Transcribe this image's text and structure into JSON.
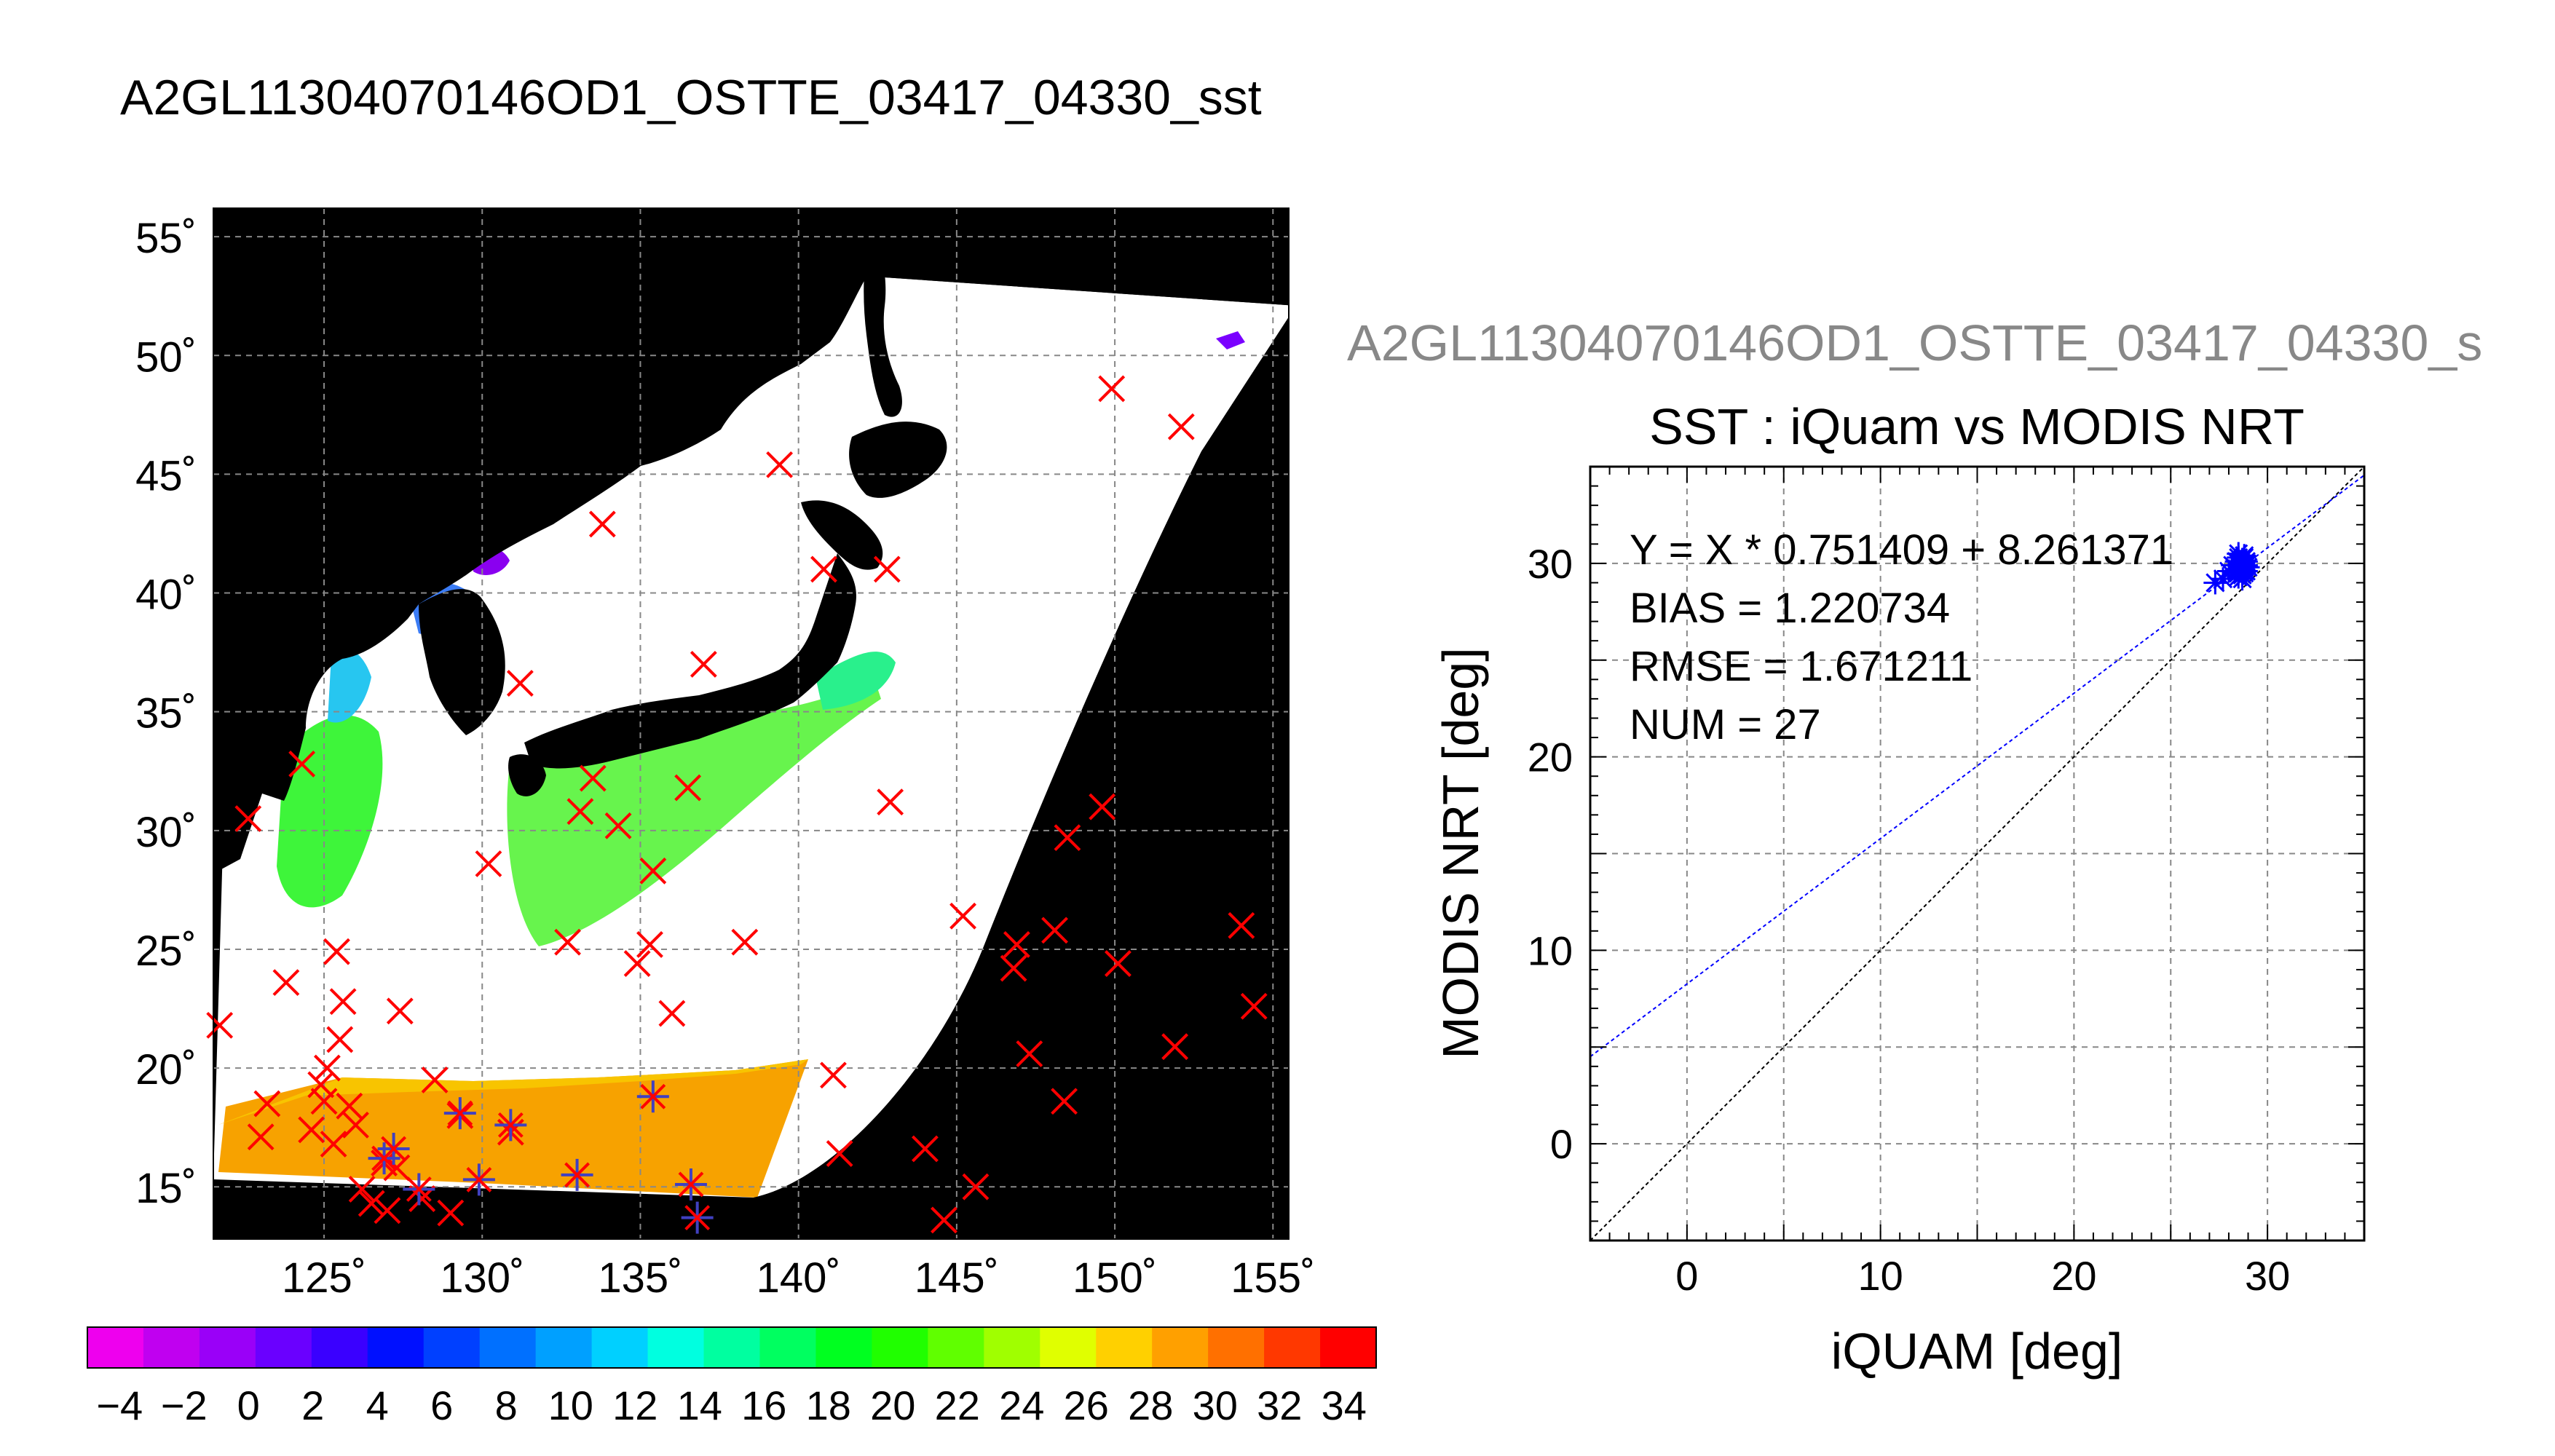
{
  "page": {
    "title": "A2GL11304070146OD1_OSTTE_03417_04330_sst"
  },
  "chart_data": [
    {
      "type": "map",
      "title": "A2GL11304070146OD1_OSTTE_03417_04330_sst",
      "description_variable": "sst",
      "lon_ticks": [
        125,
        130,
        135,
        140,
        145,
        150,
        155
      ],
      "lon_tick_labels": [
        "125˚",
        "130˚",
        "135˚",
        "140˚",
        "145˚",
        "150˚",
        "155˚"
      ],
      "lat_ticks": [
        15,
        20,
        25,
        30,
        35,
        40,
        45,
        50,
        55
      ],
      "lat_tick_labels": [
        "15˚",
        "20˚",
        "25˚",
        "30˚",
        "35˚",
        "40˚",
        "45˚",
        "50˚",
        "55˚"
      ],
      "xlim": [
        121.5,
        155.5
      ],
      "ylim": [
        12.8,
        56.2
      ],
      "grid": true,
      "colorbar": {
        "min": -5,
        "max": 35,
        "tick_values": [
          -4,
          -2,
          0,
          2,
          4,
          6,
          8,
          10,
          12,
          14,
          16,
          18,
          20,
          22,
          24,
          26,
          28,
          30,
          32,
          34
        ],
        "tick_labels": [
          "−4",
          "−2",
          "0",
          "2",
          "4",
          "6",
          "8",
          "10",
          "12",
          "14",
          "16",
          "18",
          "20",
          "22",
          "24",
          "26",
          "28",
          "30",
          "32",
          "34"
        ],
        "colors": [
          "#ee00ee",
          "#c000f0",
          "#9a00f8",
          "#6a00ff",
          "#3a00ff",
          "#0010ff",
          "#0040ff",
          "#0070ff",
          "#00a0ff",
          "#00d0ff",
          "#00ffe0",
          "#00ffa0",
          "#00ff60",
          "#00ff20",
          "#20ff00",
          "#60ff00",
          "#a0ff00",
          "#e0ff00",
          "#ffd000",
          "#ffa000",
          "#ff7000",
          "#ff3800",
          "#ff0000"
        ]
      },
      "unmatched_obs_marker": "x",
      "unmatched_obs_color": "#ff0000",
      "matched_obs_marker": "*",
      "matched_obs_color": "#4040c0",
      "obs_points": [
        {
          "lon": 121.7,
          "lat": 21.8
        },
        {
          "lon": 122.6,
          "lat": 30.5
        },
        {
          "lon": 123.0,
          "lat": 17.1
        },
        {
          "lon": 123.2,
          "lat": 18.5
        },
        {
          "lon": 123.8,
          "lat": 23.6
        },
        {
          "lon": 124.3,
          "lat": 32.8
        },
        {
          "lon": 124.6,
          "lat": 17.4
        },
        {
          "lon": 124.9,
          "lat": 19.3
        },
        {
          "lon": 125.0,
          "lat": 18.6
        },
        {
          "lon": 125.1,
          "lat": 20.0
        },
        {
          "lon": 125.4,
          "lat": 24.9
        },
        {
          "lon": 125.5,
          "lat": 21.2
        },
        {
          "lon": 125.6,
          "lat": 22.8
        },
        {
          "lon": 125.3,
          "lat": 16.8
        },
        {
          "lon": 125.8,
          "lat": 18.4
        },
        {
          "lon": 126.2,
          "lat": 14.9
        },
        {
          "lon": 126.0,
          "lat": 17.6
        },
        {
          "lon": 126.5,
          "lat": 14.3
        },
        {
          "lon": 126.9,
          "lat": 16.0
        },
        {
          "lon": 127.0,
          "lat": 14.0
        },
        {
          "lon": 127.3,
          "lat": 15.8
        },
        {
          "lon": 127.4,
          "lat": 22.4
        },
        {
          "lon": 128.1,
          "lat": 14.5
        },
        {
          "lon": 128.5,
          "lat": 19.5
        },
        {
          "lon": 129.0,
          "lat": 13.9
        },
        {
          "lon": 129.3,
          "lat": 18.0
        },
        {
          "lon": 130.2,
          "lat": 28.6
        },
        {
          "lon": 130.9,
          "lat": 17.3
        },
        {
          "lon": 131.2,
          "lat": 36.2
        },
        {
          "lon": 132.7,
          "lat": 25.3
        },
        {
          "lon": 133.1,
          "lat": 30.8
        },
        {
          "lon": 133.5,
          "lat": 32.2
        },
        {
          "lon": 133.8,
          "lat": 42.9
        },
        {
          "lon": 134.3,
          "lat": 30.2
        },
        {
          "lon": 134.9,
          "lat": 24.4
        },
        {
          "lon": 135.3,
          "lat": 25.2
        },
        {
          "lon": 135.4,
          "lat": 28.3
        },
        {
          "lon": 136.0,
          "lat": 22.3
        },
        {
          "lon": 136.5,
          "lat": 31.8
        },
        {
          "lon": 137.0,
          "lat": 37.0
        },
        {
          "lon": 138.3,
          "lat": 25.3
        },
        {
          "lon": 139.4,
          "lat": 45.4
        },
        {
          "lon": 140.8,
          "lat": 41.0
        },
        {
          "lon": 141.1,
          "lat": 19.7
        },
        {
          "lon": 141.3,
          "lat": 16.4
        },
        {
          "lon": 142.8,
          "lat": 41.0
        },
        {
          "lon": 142.9,
          "lat": 31.2
        },
        {
          "lon": 144.0,
          "lat": 16.6
        },
        {
          "lon": 144.6,
          "lat": 13.6
        },
        {
          "lon": 145.2,
          "lat": 26.4
        },
        {
          "lon": 145.6,
          "lat": 15.0
        },
        {
          "lon": 146.9,
          "lat": 25.2
        },
        {
          "lon": 146.8,
          "lat": 24.2
        },
        {
          "lon": 147.3,
          "lat": 20.6
        },
        {
          "lon": 148.1,
          "lat": 25.8
        },
        {
          "lon": 148.4,
          "lat": 18.6
        },
        {
          "lon": 148.5,
          "lat": 29.7
        },
        {
          "lon": 149.6,
          "lat": 31.0
        },
        {
          "lon": 149.9,
          "lat": 48.6
        },
        {
          "lon": 150.1,
          "lat": 24.4
        },
        {
          "lon": 151.9,
          "lat": 20.9
        },
        {
          "lon": 152.1,
          "lat": 47.0
        },
        {
          "lon": 154.0,
          "lat": 26.0
        },
        {
          "lon": 154.4,
          "lat": 22.6
        }
      ],
      "matched_points": [
        {
          "lon": 126.9,
          "lat": 16.2
        },
        {
          "lon": 127.2,
          "lat": 16.6
        },
        {
          "lon": 128.0,
          "lat": 14.9
        },
        {
          "lon": 129.3,
          "lat": 18.1
        },
        {
          "lon": 129.9,
          "lat": 15.3
        },
        {
          "lon": 130.9,
          "lat": 17.6
        },
        {
          "lon": 133.0,
          "lat": 15.5
        },
        {
          "lon": 135.4,
          "lat": 18.8
        },
        {
          "lon": 136.6,
          "lat": 15.1
        },
        {
          "lon": 136.8,
          "lat": 13.7
        }
      ]
    },
    {
      "type": "scatter",
      "overtitle": "A2GL11304070146OD1_OSTTE_03417_04330_s",
      "title": "SST : iQuam vs MODIS NRT",
      "xlabel": "iQUAM [deg]",
      "ylabel": "MODIS NRT [deg]",
      "xlim": [
        -5,
        35
      ],
      "ylim": [
        -5,
        35
      ],
      "xticks": [
        0,
        10,
        20,
        30
      ],
      "yticks": [
        0,
        10,
        20,
        30
      ],
      "grid": true,
      "annotations": [
        "Y = X * 0.751409 + 8.261371",
        "BIAS = 1.220734",
        "RMSE = 1.671211",
        "NUM = 27"
      ],
      "fit_line": {
        "slope": 0.751409,
        "intercept": 8.261371,
        "color": "#0000ff"
      },
      "identity_line": {
        "slope": 1,
        "intercept": 0,
        "color": "#000000"
      },
      "marker_color": "#0000ff",
      "series": [
        {
          "x": [
            27.3,
            27.7,
            28.0,
            28.2,
            28.4,
            28.5,
            28.5,
            28.6,
            28.6,
            28.7,
            28.7,
            28.7,
            28.8,
            28.8,
            28.8,
            28.9,
            28.9,
            29.0,
            28.5,
            28.6,
            28.4,
            28.7,
            28.9,
            28.8,
            28.6,
            28.7,
            28.5
          ],
          "y": [
            29.0,
            29.2,
            29.6,
            29.9,
            30.1,
            29.3,
            30.3,
            29.8,
            30.0,
            29.4,
            29.7,
            30.2,
            29.5,
            29.9,
            30.4,
            29.6,
            30.1,
            29.8,
            29.5,
            30.0,
            29.7,
            29.2,
            29.9,
            30.3,
            29.6,
            29.8,
            30.5
          ]
        }
      ]
    }
  ]
}
